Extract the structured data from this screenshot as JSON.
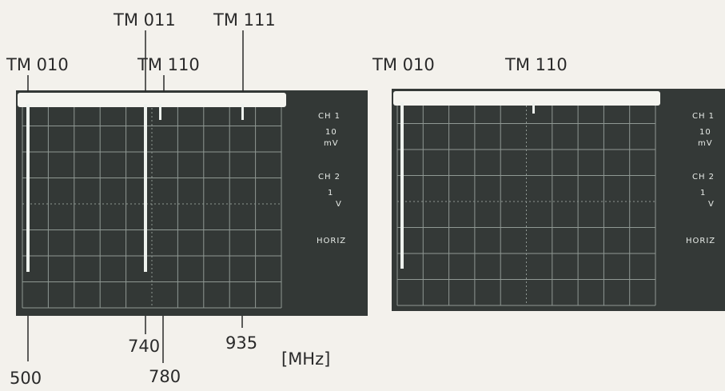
{
  "left_panel": {
    "mode_labels": [
      "TM 010",
      "TM 011",
      "TM 110",
      "TM 111"
    ],
    "screen": {
      "ch1_label": "CH 1",
      "ch1_value": "10",
      "ch1_unit": "mV",
      "ch2_label": "CH 2",
      "ch2_value": "1",
      "ch2_unit": "V",
      "horiz_label": "HORIZ"
    },
    "frequency_labels": [
      "500",
      "740",
      "780",
      "935"
    ]
  },
  "right_panel": {
    "mode_labels": [
      "TM 010",
      "TM 110"
    ],
    "screen": {
      "ch1_label": "CH 1",
      "ch1_value": "10",
      "ch1_unit": "mV",
      "ch2_label": "CH 2",
      "ch2_value": "1",
      "ch2_unit": "V",
      "horiz_label": "HORIZ"
    }
  },
  "unit_label": "[MHz]"
}
